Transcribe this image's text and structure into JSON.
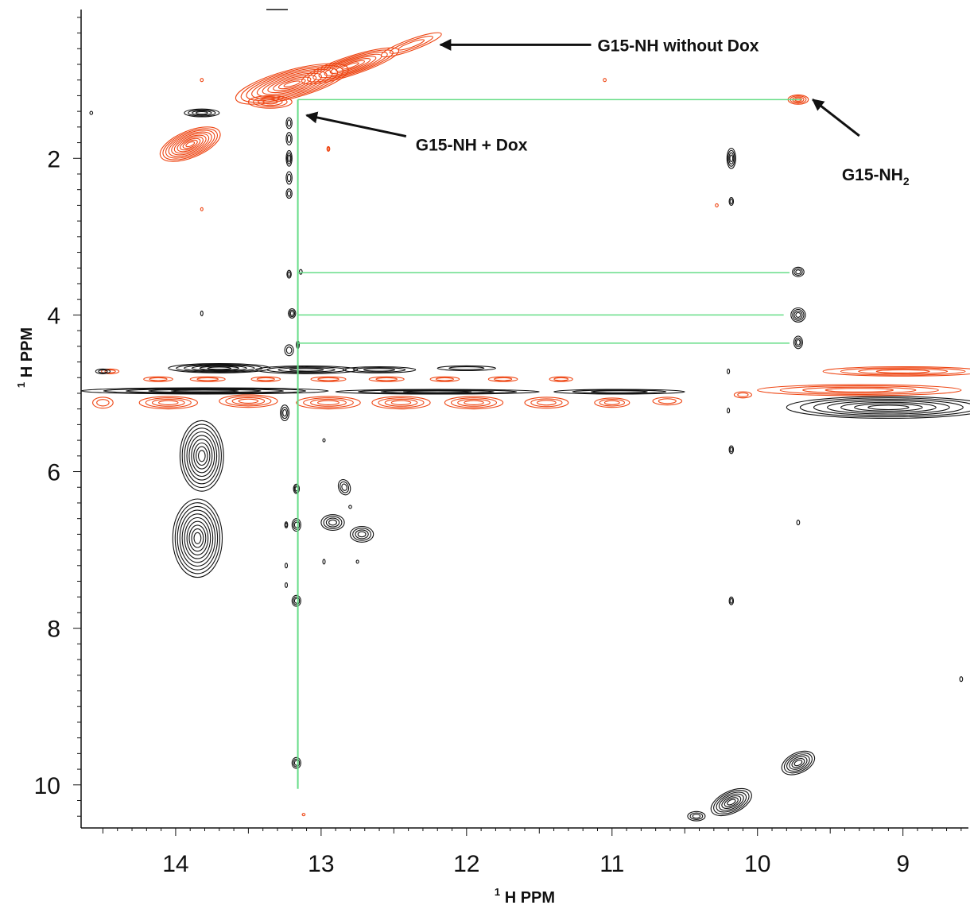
{
  "chart_data": {
    "type": "contour",
    "xaxis": {
      "label_sup": "1",
      "label_main": "H PPM",
      "lim": [
        14.65,
        8.55
      ],
      "reversed": true,
      "ticks": [
        14,
        13,
        12,
        11,
        10,
        9
      ]
    },
    "yaxis": {
      "label_sup": "1",
      "label_main": "H PPM",
      "lim": [
        0.1,
        10.55
      ],
      "reversed": true,
      "ticks": [
        2,
        4,
        6,
        8,
        10
      ]
    },
    "colors": {
      "with_dox": "#111111",
      "without_dox": "#ee4411",
      "connectivity": "#66dd88",
      "arrow": "#111111"
    },
    "annotations": [
      {
        "id": "g15-nh-without-dox",
        "text": "G15-NH without Dox",
        "x_ppm": 11.1,
        "y_ppm": 0.55,
        "arrow_to": [
          12.18,
          0.55
        ]
      },
      {
        "id": "g15-nh-plus-dox",
        "text": "G15-NH + Dox",
        "x_ppm": 12.35,
        "y_ppm": 1.82,
        "arrow_to": [
          13.1,
          1.45
        ]
      },
      {
        "id": "g15-nh2",
        "text": "G15-NH",
        "subscript": "2",
        "x_ppm": 9.42,
        "y_ppm": 2.2,
        "arrow_to": [
          9.62,
          1.25
        ]
      }
    ],
    "connectivity_lines": {
      "vertical": {
        "x_ppm": 13.16,
        "y_from": 1.25,
        "y_to": 10.05
      },
      "horizontal": [
        {
          "y_ppm": 1.25,
          "x_from": 13.16,
          "x_to": 9.7
        },
        {
          "y_ppm": 3.46,
          "x_from": 13.16,
          "x_to": 9.78
        },
        {
          "y_ppm": 4.0,
          "x_from": 13.16,
          "x_to": 9.82
        },
        {
          "y_ppm": 4.36,
          "x_from": 13.16,
          "x_to": 9.78
        }
      ]
    },
    "series": [
      {
        "name": "",
        "color": "#ee4411",
        "peaks": [
          {
            "x": 12.38,
            "y": 0.55,
            "wx": 0.22,
            "wy": 0.07,
            "angle": -20,
            "levels": 3
          },
          {
            "x": 12.8,
            "y": 0.82,
            "wx": 0.35,
            "wy": 0.12,
            "angle": -18,
            "levels": 8
          },
          {
            "x": 13.2,
            "y": 1.05,
            "wx": 0.4,
            "wy": 0.18,
            "angle": -15,
            "levels": 10
          },
          {
            "x": 13.35,
            "y": 1.28,
            "wx": 0.15,
            "wy": 0.08,
            "angle": 0,
            "levels": 4
          },
          {
            "x": 13.9,
            "y": 1.82,
            "wx": 0.22,
            "wy": 0.17,
            "angle": -22,
            "levels": 10
          },
          {
            "x": 9.72,
            "y": 1.25,
            "wx": 0.07,
            "wy": 0.06,
            "angle": 0,
            "levels": 4
          },
          {
            "x": 12.95,
            "y": 1.88,
            "wx": 0.01,
            "wy": 0.03,
            "angle": 0,
            "levels": 2
          },
          {
            "x": 13.82,
            "y": 1.0,
            "wx": 0.01,
            "wy": 0.02,
            "angle": 0,
            "levels": 1
          },
          {
            "x": 11.05,
            "y": 1.0,
            "wx": 0.01,
            "wy": 0.02,
            "angle": 0,
            "levels": 1
          },
          {
            "x": 13.82,
            "y": 2.65,
            "wx": 0.005,
            "wy": 0.02,
            "angle": 0,
            "levels": 1
          },
          {
            "x": 13.12,
            "y": 10.38,
            "wx": 0.01,
            "wy": 0.01,
            "angle": 0,
            "levels": 1
          },
          {
            "x": 14.45,
            "y": 4.72,
            "wx": 0.06,
            "wy": 0.03,
            "angle": 0,
            "levels": 2
          },
          {
            "x": 14.12,
            "y": 4.82,
            "wx": 0.1,
            "wy": 0.03,
            "angle": 0,
            "levels": 2
          },
          {
            "x": 13.78,
            "y": 4.82,
            "wx": 0.12,
            "wy": 0.03,
            "angle": 0,
            "levels": 2
          },
          {
            "x": 13.38,
            "y": 4.82,
            "wx": 0.1,
            "wy": 0.03,
            "angle": 0,
            "levels": 2
          },
          {
            "x": 12.95,
            "y": 4.82,
            "wx": 0.12,
            "wy": 0.03,
            "angle": 0,
            "levels": 2
          },
          {
            "x": 12.55,
            "y": 4.82,
            "wx": 0.12,
            "wy": 0.03,
            "angle": 0,
            "levels": 2
          },
          {
            "x": 12.15,
            "y": 4.82,
            "wx": 0.1,
            "wy": 0.03,
            "angle": 0,
            "levels": 2
          },
          {
            "x": 11.75,
            "y": 4.82,
            "wx": 0.1,
            "wy": 0.03,
            "angle": 0,
            "levels": 2
          },
          {
            "x": 11.35,
            "y": 4.82,
            "wx": 0.08,
            "wy": 0.03,
            "angle": 0,
            "levels": 2
          },
          {
            "x": 14.5,
            "y": 5.12,
            "wx": 0.07,
            "wy": 0.07,
            "angle": 0,
            "levels": 2
          },
          {
            "x": 14.05,
            "y": 5.12,
            "wx": 0.2,
            "wy": 0.08,
            "angle": 0,
            "levels": 4
          },
          {
            "x": 13.5,
            "y": 5.1,
            "wx": 0.2,
            "wy": 0.08,
            "angle": 0,
            "levels": 4
          },
          {
            "x": 12.95,
            "y": 5.12,
            "wx": 0.22,
            "wy": 0.08,
            "angle": 0,
            "levels": 4
          },
          {
            "x": 12.45,
            "y": 5.12,
            "wx": 0.2,
            "wy": 0.08,
            "angle": 0,
            "levels": 4
          },
          {
            "x": 11.95,
            "y": 5.12,
            "wx": 0.2,
            "wy": 0.08,
            "angle": 0,
            "levels": 4
          },
          {
            "x": 11.45,
            "y": 5.12,
            "wx": 0.15,
            "wy": 0.07,
            "angle": 0,
            "levels": 3
          },
          {
            "x": 11.0,
            "y": 5.12,
            "wx": 0.12,
            "wy": 0.06,
            "angle": 0,
            "levels": 3
          },
          {
            "x": 10.62,
            "y": 5.1,
            "wx": 0.1,
            "wy": 0.05,
            "angle": 0,
            "levels": 2
          },
          {
            "x": 10.1,
            "y": 5.02,
            "wx": 0.06,
            "wy": 0.04,
            "angle": 0,
            "levels": 2
          },
          {
            "x": 9.3,
            "y": 4.96,
            "wx": 0.7,
            "wy": 0.07,
            "angle": 0,
            "levels": 4
          },
          {
            "x": 9.0,
            "y": 4.72,
            "wx": 0.55,
            "wy": 0.06,
            "angle": 0,
            "levels": 4
          },
          {
            "x": 10.28,
            "y": 2.6,
            "wx": 0.01,
            "wy": 0.02,
            "angle": 0,
            "levels": 1
          }
        ]
      },
      {
        "name": "",
        "color": "#111111",
        "peaks": [
          {
            "x": 13.82,
            "y": 1.42,
            "wx": 0.12,
            "wy": 0.05,
            "angle": 0,
            "levels": 4
          },
          {
            "x": 14.58,
            "y": 1.42,
            "wx": 0.01,
            "wy": 0.02,
            "angle": 0,
            "levels": 1
          },
          {
            "x": 13.22,
            "y": 1.55,
            "wx": 0.02,
            "wy": 0.07,
            "angle": 0,
            "levels": 2
          },
          {
            "x": 13.22,
            "y": 1.75,
            "wx": 0.02,
            "wy": 0.08,
            "angle": 0,
            "levels": 2
          },
          {
            "x": 13.22,
            "y": 2.0,
            "wx": 0.02,
            "wy": 0.1,
            "angle": 0,
            "levels": 3
          },
          {
            "x": 13.22,
            "y": 2.25,
            "wx": 0.02,
            "wy": 0.08,
            "angle": 0,
            "levels": 2
          },
          {
            "x": 13.22,
            "y": 2.45,
            "wx": 0.02,
            "wy": 0.06,
            "angle": 0,
            "levels": 2
          },
          {
            "x": 13.22,
            "y": 3.48,
            "wx": 0.015,
            "wy": 0.05,
            "angle": 0,
            "levels": 2
          },
          {
            "x": 13.14,
            "y": 3.45,
            "wx": 0.01,
            "wy": 0.03,
            "angle": 0,
            "levels": 1
          },
          {
            "x": 13.2,
            "y": 3.98,
            "wx": 0.025,
            "wy": 0.06,
            "angle": 0,
            "levels": 3
          },
          {
            "x": 13.82,
            "y": 3.98,
            "wx": 0.005,
            "wy": 0.03,
            "angle": 0,
            "levels": 1
          },
          {
            "x": 13.22,
            "y": 4.45,
            "wx": 0.03,
            "wy": 0.07,
            "angle": 0,
            "levels": 2
          },
          {
            "x": 13.16,
            "y": 4.38,
            "wx": 0.01,
            "wy": 0.05,
            "angle": 0,
            "levels": 2
          },
          {
            "x": 14.5,
            "y": 4.72,
            "wx": 0.05,
            "wy": 0.03,
            "angle": 0,
            "levels": 2
          },
          {
            "x": 13.7,
            "y": 4.68,
            "wx": 0.35,
            "wy": 0.06,
            "angle": 0,
            "levels": 6
          },
          {
            "x": 13.1,
            "y": 4.7,
            "wx": 0.35,
            "wy": 0.05,
            "angle": 0,
            "levels": 4
          },
          {
            "x": 12.6,
            "y": 4.7,
            "wx": 0.25,
            "wy": 0.04,
            "angle": 0,
            "levels": 3
          },
          {
            "x": 12.0,
            "y": 4.68,
            "wx": 0.2,
            "wy": 0.03,
            "angle": 0,
            "levels": 2
          },
          {
            "x": 13.8,
            "y": 4.97,
            "wx": 0.85,
            "wy": 0.04,
            "angle": 0,
            "levels": 5
          },
          {
            "x": 12.2,
            "y": 4.98,
            "wx": 0.7,
            "wy": 0.03,
            "angle": 0,
            "levels": 4
          },
          {
            "x": 10.95,
            "y": 4.98,
            "wx": 0.45,
            "wy": 0.03,
            "angle": 0,
            "levels": 3
          },
          {
            "x": 9.1,
            "y": 5.18,
            "wx": 0.7,
            "wy": 0.14,
            "angle": 0,
            "levels": 7
          },
          {
            "x": 10.2,
            "y": 4.72,
            "wx": 0.005,
            "wy": 0.03,
            "angle": 0,
            "levels": 1
          },
          {
            "x": 10.2,
            "y": 5.22,
            "wx": 0.005,
            "wy": 0.03,
            "angle": 0,
            "levels": 1
          },
          {
            "x": 10.18,
            "y": 2.0,
            "wx": 0.03,
            "wy": 0.13,
            "angle": 0,
            "levels": 4
          },
          {
            "x": 10.18,
            "y": 2.55,
            "wx": 0.015,
            "wy": 0.05,
            "angle": 0,
            "levels": 2
          },
          {
            "x": 9.72,
            "y": 3.45,
            "wx": 0.04,
            "wy": 0.06,
            "angle": 0,
            "levels": 3
          },
          {
            "x": 9.72,
            "y": 4.0,
            "wx": 0.05,
            "wy": 0.09,
            "angle": 0,
            "levels": 4
          },
          {
            "x": 9.72,
            "y": 4.35,
            "wx": 0.03,
            "wy": 0.08,
            "angle": 0,
            "levels": 3
          },
          {
            "x": 13.25,
            "y": 5.25,
            "wx": 0.03,
            "wy": 0.1,
            "angle": 0,
            "levels": 3
          },
          {
            "x": 13.82,
            "y": 5.8,
            "wx": 0.15,
            "wy": 0.45,
            "angle": 0,
            "levels": 9
          },
          {
            "x": 13.85,
            "y": 6.85,
            "wx": 0.17,
            "wy": 0.5,
            "angle": 0,
            "levels": 10
          },
          {
            "x": 13.17,
            "y": 6.22,
            "wx": 0.02,
            "wy": 0.06,
            "angle": 0,
            "levels": 3
          },
          {
            "x": 13.17,
            "y": 6.68,
            "wx": 0.03,
            "wy": 0.08,
            "angle": 0,
            "levels": 3
          },
          {
            "x": 13.24,
            "y": 6.68,
            "wx": 0.01,
            "wy": 0.04,
            "angle": 0,
            "levels": 2
          },
          {
            "x": 13.17,
            "y": 7.65,
            "wx": 0.03,
            "wy": 0.07,
            "angle": 0,
            "levels": 3
          },
          {
            "x": 13.17,
            "y": 9.72,
            "wx": 0.03,
            "wy": 0.07,
            "angle": 0,
            "levels": 3
          },
          {
            "x": 13.24,
            "y": 7.2,
            "wx": 0.005,
            "wy": 0.03,
            "angle": 0,
            "levels": 1
          },
          {
            "x": 13.24,
            "y": 7.45,
            "wx": 0.005,
            "wy": 0.03,
            "angle": 0,
            "levels": 1
          },
          {
            "x": 12.84,
            "y": 6.2,
            "wx": 0.04,
            "wy": 0.1,
            "angle": -20,
            "levels": 3
          },
          {
            "x": 12.92,
            "y": 6.65,
            "wx": 0.08,
            "wy": 0.1,
            "angle": 0,
            "levels": 4
          },
          {
            "x": 12.72,
            "y": 6.8,
            "wx": 0.08,
            "wy": 0.1,
            "angle": 0,
            "levels": 4
          },
          {
            "x": 12.8,
            "y": 6.45,
            "wx": 0.01,
            "wy": 0.02,
            "angle": 0,
            "levels": 1
          },
          {
            "x": 12.98,
            "y": 7.15,
            "wx": 0.005,
            "wy": 0.03,
            "angle": 0,
            "levels": 1
          },
          {
            "x": 12.75,
            "y": 7.15,
            "wx": 0.005,
            "wy": 0.02,
            "angle": 0,
            "levels": 1
          },
          {
            "x": 12.98,
            "y": 5.6,
            "wx": 0.005,
            "wy": 0.02,
            "angle": 0,
            "levels": 1
          },
          {
            "x": 10.18,
            "y": 5.72,
            "wx": 0.015,
            "wy": 0.05,
            "angle": 0,
            "levels": 2
          },
          {
            "x": 10.18,
            "y": 7.65,
            "wx": 0.015,
            "wy": 0.05,
            "angle": 0,
            "levels": 2
          },
          {
            "x": 9.72,
            "y": 6.65,
            "wx": 0.01,
            "wy": 0.03,
            "angle": 0,
            "levels": 1
          },
          {
            "x": 8.6,
            "y": 8.65,
            "wx": 0.01,
            "wy": 0.03,
            "angle": 0,
            "levels": 1
          },
          {
            "x": 9.72,
            "y": 9.72,
            "wx": 0.12,
            "wy": 0.13,
            "angle": -25,
            "levels": 6
          },
          {
            "x": 10.18,
            "y": 10.22,
            "wx": 0.15,
            "wy": 0.14,
            "angle": -25,
            "levels": 7
          },
          {
            "x": 10.42,
            "y": 10.4,
            "wx": 0.06,
            "wy": 0.06,
            "angle": 0,
            "levels": 3
          }
        ]
      }
    ]
  }
}
